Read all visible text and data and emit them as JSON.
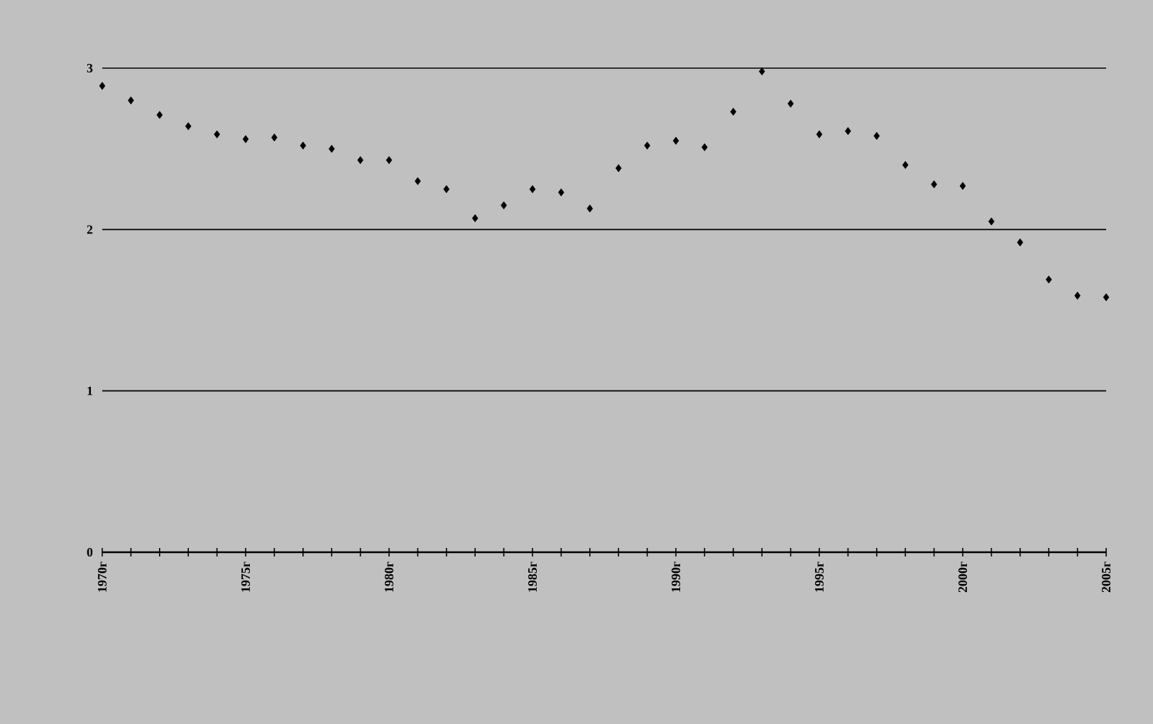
{
  "chart_data": {
    "type": "scatter",
    "marker": "diamond",
    "grid": "y",
    "x": [
      1970,
      1971,
      1972,
      1973,
      1974,
      1975,
      1976,
      1977,
      1978,
      1979,
      1980,
      1981,
      1982,
      1983,
      1984,
      1985,
      1986,
      1987,
      1988,
      1989,
      1990,
      1991,
      1992,
      1993,
      1994,
      1995,
      1996,
      1997,
      1998,
      1999,
      2000,
      2001,
      2002,
      2003,
      2004,
      2005
    ],
    "series": [
      {
        "color": "#000000",
        "values": [
          2.89,
          2.8,
          2.71,
          2.64,
          2.59,
          2.56,
          2.57,
          2.52,
          2.5,
          2.43,
          2.43,
          2.3,
          2.25,
          2.07,
          2.15,
          2.25,
          2.23,
          2.13,
          2.38,
          2.52,
          2.55,
          2.51,
          2.73,
          2.98,
          2.78,
          2.59,
          2.61,
          2.58,
          2.4,
          2.28,
          2.27,
          2.05,
          1.92,
          1.69,
          1.59,
          1.58
        ]
      }
    ],
    "xlim": [
      1970,
      2005
    ],
    "xticks": [
      {
        "value": 1970,
        "label": "1970г"
      },
      {
        "value": 1971,
        "label": null
      },
      {
        "value": 1972,
        "label": null
      },
      {
        "value": 1973,
        "label": null
      },
      {
        "value": 1974,
        "label": null
      },
      {
        "value": 1975,
        "label": "1975г"
      },
      {
        "value": 1976,
        "label": null
      },
      {
        "value": 1977,
        "label": null
      },
      {
        "value": 1978,
        "label": null
      },
      {
        "value": 1979,
        "label": null
      },
      {
        "value": 1980,
        "label": "1980г"
      },
      {
        "value": 1981,
        "label": null
      },
      {
        "value": 1982,
        "label": null
      },
      {
        "value": 1983,
        "label": null
      },
      {
        "value": 1984,
        "label": null
      },
      {
        "value": 1985,
        "label": "1985г"
      },
      {
        "value": 1986,
        "label": null
      },
      {
        "value": 1987,
        "label": null
      },
      {
        "value": 1988,
        "label": null
      },
      {
        "value": 1989,
        "label": null
      },
      {
        "value": 1990,
        "label": "1990г"
      },
      {
        "value": 1991,
        "label": null
      },
      {
        "value": 1992,
        "label": null
      },
      {
        "value": 1993,
        "label": null
      },
      {
        "value": 1994,
        "label": null
      },
      {
        "value": 1995,
        "label": "1995г"
      },
      {
        "value": 1996,
        "label": null
      },
      {
        "value": 1997,
        "label": null
      },
      {
        "value": 1998,
        "label": null
      },
      {
        "value": 1999,
        "label": null
      },
      {
        "value": 2000,
        "label": "2000г"
      },
      {
        "value": 2001,
        "label": null
      },
      {
        "value": 2002,
        "label": null
      },
      {
        "value": 2003,
        "label": null
      },
      {
        "value": 2004,
        "label": null
      },
      {
        "value": 2005,
        "label": "2005г"
      }
    ],
    "ylim": [
      0,
      3
    ],
    "yticks": [
      0,
      1,
      2,
      3
    ]
  }
}
